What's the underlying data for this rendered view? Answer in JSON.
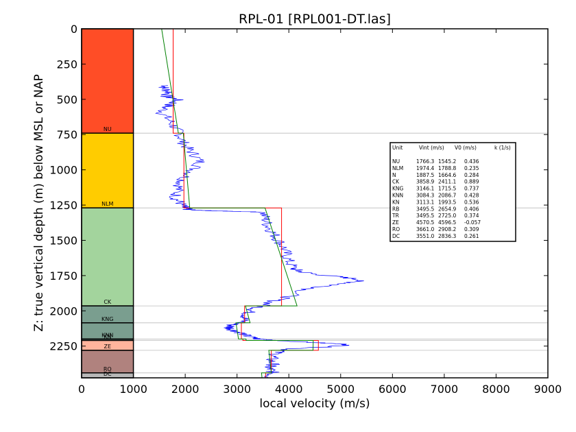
{
  "chart_data": {
    "type": "line",
    "title": "RPL-01 [RPL001-DT.las]",
    "xlabel": "local velocity (m/s)",
    "ylabel": "Z: true vertical depth (m) below MSL or NAP",
    "xlim": [
      0,
      9000
    ],
    "ylim": [
      2475,
      0
    ],
    "y_inverted": true,
    "grid": false,
    "xticks": [
      0,
      1000,
      2000,
      3000,
      4000,
      5000,
      6000,
      7000,
      8000,
      9000
    ],
    "yticks": [
      0,
      250,
      500,
      750,
      1000,
      1250,
      1500,
      1750,
      2000,
      2250
    ],
    "units": [
      {
        "name": "NU",
        "top": 0,
        "base": 740,
        "color": "#FF4D26"
      },
      {
        "name": "NLM",
        "top": 740,
        "base": 1270,
        "color": "#FFCC00"
      },
      {
        "name": "CK",
        "top": 1270,
        "base": 1965,
        "color": "#A3D49D"
      },
      {
        "name": "KNG",
        "top": 1965,
        "base": 2085,
        "color": "#7A9E8F"
      },
      {
        "name": "KNN",
        "top": 2085,
        "base": 2200,
        "color": "#7A9E8F"
      },
      {
        "name": "KN",
        "top": 2200,
        "base": 2210,
        "color": "#7A9E8F"
      },
      {
        "name": "ZE",
        "top": 2210,
        "base": 2280,
        "color": "#FFB49C"
      },
      {
        "name": "RO",
        "top": 2280,
        "base": 2440,
        "color": "#B0827E"
      },
      {
        "name": "DC",
        "top": 2440,
        "base": 2475,
        "color": "#B8B8B8"
      }
    ],
    "log_series": {
      "name": "",
      "color": "#0000FF",
      "x": [
        1650,
        1580,
        1700,
        1620,
        1850,
        1750,
        1600,
        1550,
        1700,
        1800,
        1900,
        1950,
        2050,
        2200,
        2300,
        2150,
        2000,
        1900,
        1850,
        1800,
        1900,
        1950,
        2000,
        2100,
        2500,
        3000,
        3500,
        3550,
        3600,
        3700,
        3800,
        3900,
        3950,
        4000,
        4100,
        4200,
        4500,
        5000,
        5400,
        5200,
        4800,
        4300,
        4000,
        3700,
        3500,
        3300,
        3200,
        3150,
        3100,
        2900,
        2850,
        2950,
        3100,
        3200,
        3400,
        3800,
        4500,
        5200,
        4800,
        4000,
        3800,
        3700,
        3650,
        3700,
        3600,
        3650,
        3700,
        3600
      ],
      "y": [
        400,
        420,
        450,
        480,
        500,
        530,
        560,
        600,
        650,
        700,
        750,
        800,
        850,
        900,
        950,
        1000,
        1050,
        1100,
        1150,
        1200,
        1230,
        1260,
        1275,
        1285,
        1290,
        1295,
        1300,
        1350,
        1400,
        1450,
        1500,
        1550,
        1600,
        1650,
        1700,
        1720,
        1740,
        1760,
        1780,
        1800,
        1820,
        1850,
        1900,
        1930,
        1965,
        1990,
        2020,
        2050,
        2080,
        2100,
        2120,
        2140,
        2160,
        2180,
        2200,
        2210,
        2225,
        2240,
        2255,
        2270,
        2290,
        2320,
        2350,
        2380,
        2400,
        2420,
        2440,
        2470
      ]
    },
    "vint_series": {
      "name": "",
      "color": "#FF0000",
      "segments": [
        {
          "unit": "NU",
          "v": 1766.3
        },
        {
          "unit": "NLM",
          "v": 1974.4
        },
        {
          "unit": "CK",
          "v": 3858.9
        },
        {
          "unit": "KNG",
          "v": 3146.1
        },
        {
          "unit": "KNN",
          "v": 3084.3
        },
        {
          "unit": "KN",
          "v": 3113.1
        },
        {
          "unit": "ZE",
          "v": 4570.5
        },
        {
          "unit": "RO",
          "v": 3661.0
        },
        {
          "unit": "DC",
          "v": 3551.0
        }
      ]
    },
    "v0k_series": {
      "name": "",
      "color": "#008000",
      "segments": [
        {
          "unit": "NU",
          "v0": 1545.2,
          "k": 0.436
        },
        {
          "unit": "NLM",
          "v0": 1788.8,
          "k": 0.235
        },
        {
          "unit": "CK",
          "v0": 2411.1,
          "k": 0.889
        },
        {
          "unit": "KNG",
          "v0": 1715.5,
          "k": 0.737
        },
        {
          "unit": "KNN",
          "v0": 2086.7,
          "k": 0.428
        },
        {
          "unit": "KN",
          "v0": 1993.5,
          "k": 0.536
        },
        {
          "unit": "ZE",
          "v0": 4596.5,
          "k": -0.057
        },
        {
          "unit": "RO",
          "v0": 2908.2,
          "k": 0.309
        },
        {
          "unit": "DC",
          "v0": 2836.3,
          "k": 0.261
        }
      ]
    },
    "legend_table": {
      "placement": "right",
      "headers": [
        "Unit",
        "Vint (m/s)",
        "V0 (m/s)",
        "k (1/s)"
      ],
      "rows": [
        [
          "NU",
          "1766.3",
          "1545.2",
          "0.436"
        ],
        [
          "NLM",
          "1974.4",
          "1788.8",
          "0.235"
        ],
        [
          "N",
          "1887.5",
          "1664.6",
          "0.284"
        ],
        [
          "CK",
          "3858.9",
          "2411.1",
          "0.889"
        ],
        [
          "KNG",
          "3146.1",
          "1715.5",
          "0.737"
        ],
        [
          "KNN",
          "3084.3",
          "2086.7",
          "0.428"
        ],
        [
          "KN",
          "3113.1",
          "1993.5",
          "0.536"
        ],
        [
          "RB",
          "3495.5",
          "2654.9",
          "0.406"
        ],
        [
          "TR",
          "3495.5",
          "2725.0",
          "0.374"
        ],
        [
          "ZE",
          "4570.5",
          "4596.5",
          "-0.057"
        ],
        [
          "RO",
          "3661.0",
          "2908.2",
          "0.309"
        ],
        [
          "DC",
          "3551.0",
          "2836.3",
          "0.261"
        ]
      ]
    }
  }
}
